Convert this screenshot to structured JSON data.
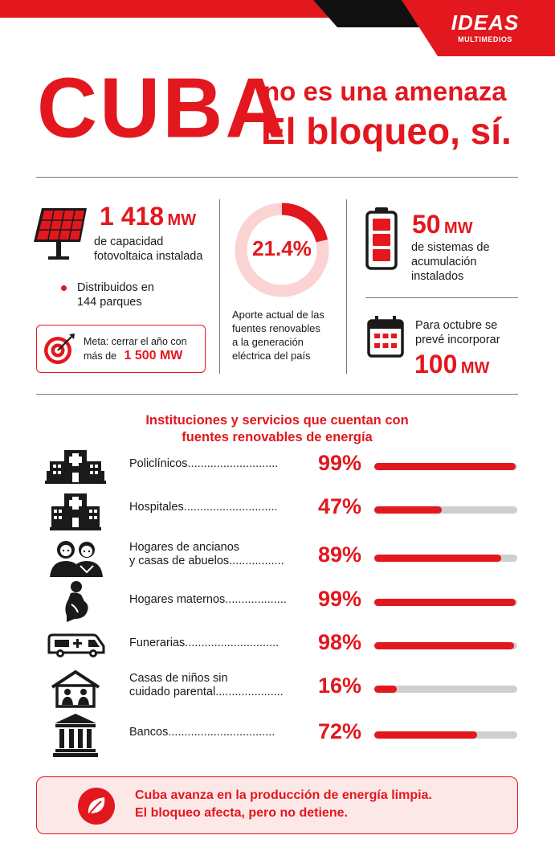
{
  "brand": {
    "logo_line1": "IDEAS",
    "logo_line2": "MULTIMEDIOS"
  },
  "title": {
    "big": "CUBA",
    "line1": "no es una amenaza",
    "line2": "El bloqueo, sí."
  },
  "solar": {
    "value": "1 418",
    "unit": "MW",
    "desc_line1": "de capacidad",
    "desc_line2": "fotovoltaica instalada",
    "bullet_line1": "Distribuidos en",
    "bullet_line2": "144 parques",
    "goal_line1": "Meta: cerrar el año con",
    "goal_line2_prefix": "más de",
    "goal_value": "1 500 MW"
  },
  "renewables": {
    "percent_label": "21.4%",
    "percent_value": 21.4,
    "desc_line1": "Aporte actual de las",
    "desc_line2": "fuentes renovables",
    "desc_line3": "a la generación",
    "desc_line4": "eléctrica del país"
  },
  "storage": {
    "value": "50",
    "unit": "MW",
    "desc_line1": "de sistemas de",
    "desc_line2": "acumulación",
    "desc_line3": "instalados",
    "plan_line1": "Para octubre se",
    "plan_line2": "prevé incorporar",
    "plan_value": "100",
    "plan_unit": "MW"
  },
  "institutions": {
    "title_line1": "Instituciones y servicios que cuentan con",
    "title_line2": "fuentes renovables de energía",
    "rows": [
      {
        "line1": "Policlínicos............................",
        "line2": "",
        "pct_label": "99%",
        "pct": 99,
        "icon": "polyclinic-icon"
      },
      {
        "line1": "Hospitales.............................",
        "line2": "",
        "pct_label": "47%",
        "pct": 47,
        "icon": "hospital-icon"
      },
      {
        "line1": "Hogares de ancianos",
        "line2": "y casas de abuelos.................",
        "pct_label": "89%",
        "pct": 89,
        "icon": "elderly-couple-icon"
      },
      {
        "line1": "Hogares maternos...................",
        "line2": "",
        "pct_label": "99%",
        "pct": 99,
        "icon": "pregnant-woman-icon"
      },
      {
        "line1": "Funerarias.............................",
        "line2": "",
        "pct_label": "98%",
        "pct": 98,
        "icon": "hearse-icon"
      },
      {
        "line1": "Casas de niños sin",
        "line2": "cuidado parental.....................",
        "pct_label": "16%",
        "pct": 16,
        "icon": "children-home-icon"
      },
      {
        "line1": "Bancos.................................",
        "line2": "",
        "pct_label": "72%",
        "pct": 72,
        "icon": "bank-icon"
      }
    ]
  },
  "footer": {
    "line1": "Cuba avanza en la producción de energía limpia.",
    "line2": "El bloqueo afecta, pero no detiene."
  },
  "colors": {
    "accent": "#e3171e",
    "dark": "#1a1a1a",
    "track": "#cfcfcf",
    "footer_bg": "#fde8e8"
  }
}
